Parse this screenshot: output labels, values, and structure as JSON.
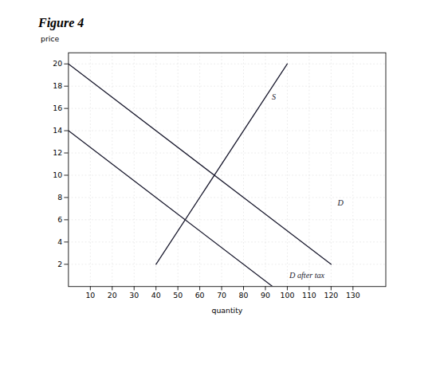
{
  "chart_data": {
    "type": "line",
    "title": "Figure 4",
    "xlabel": "quantity",
    "ylabel": "price",
    "xlim": [
      0,
      145
    ],
    "ylim": [
      0,
      21
    ],
    "xticks": [
      10,
      20,
      30,
      40,
      50,
      60,
      70,
      80,
      90,
      100,
      110,
      120,
      130
    ],
    "yticks": [
      2,
      4,
      6,
      8,
      10,
      12,
      14,
      16,
      18,
      20
    ],
    "grid": true,
    "series": [
      {
        "color": "#1a1a2e",
        "x": [
          0,
          120
        ],
        "values": [
          20,
          2
        ]
      },
      {
        "color": "#1a1a2e",
        "x": [
          40,
          100
        ],
        "values": [
          2,
          20
        ]
      },
      {
        "color": "#1a1a2e",
        "x": [
          0,
          93.3
        ],
        "values": [
          14,
          0
        ]
      }
    ],
    "annotations": [
      {
        "text": "D",
        "x": 122,
        "y": 7.5
      },
      {
        "text": "S",
        "x": 92,
        "y": 17
      },
      {
        "text": "D after tax",
        "x": 100,
        "y": 1.0
      }
    ]
  }
}
